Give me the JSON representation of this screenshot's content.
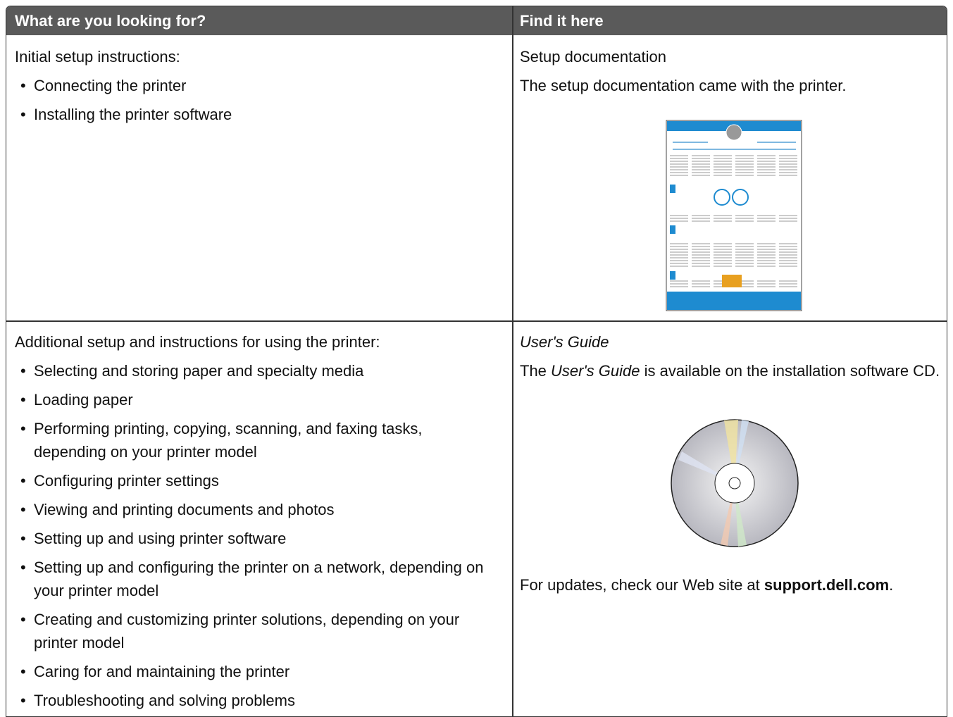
{
  "header": {
    "left": "What are you looking for?",
    "right": "Find it here"
  },
  "rows": [
    {
      "left": {
        "intro": "Initial setup instructions:",
        "bullets": [
          "Connecting the printer",
          "Installing the printer software"
        ]
      },
      "right": {
        "title": "Setup documentation",
        "text": "The setup documentation came with the printer."
      }
    },
    {
      "left": {
        "intro": "Additional setup and instructions for using the printer:",
        "bullets": [
          "Selecting and storing paper and specialty media",
          "Loading paper",
          "Performing printing, copying, scanning, and faxing tasks, depending on your printer model",
          "Configuring printer settings",
          "Viewing and printing documents and photos",
          "Setting up and using printer software",
          "Setting up and configuring the printer on a network, depending on your printer model",
          "Creating and customizing printer solutions, depending on your printer model",
          "Caring for and maintaining the printer",
          "Troubleshooting and solving problems"
        ]
      },
      "right": {
        "title": "User's Guide",
        "text": [
          "The ",
          "User's Guide",
          " is available on the installation software CD."
        ],
        "footer": [
          "For updates, check our Web site at ",
          "support.dell.com",
          "."
        ]
      }
    }
  ]
}
